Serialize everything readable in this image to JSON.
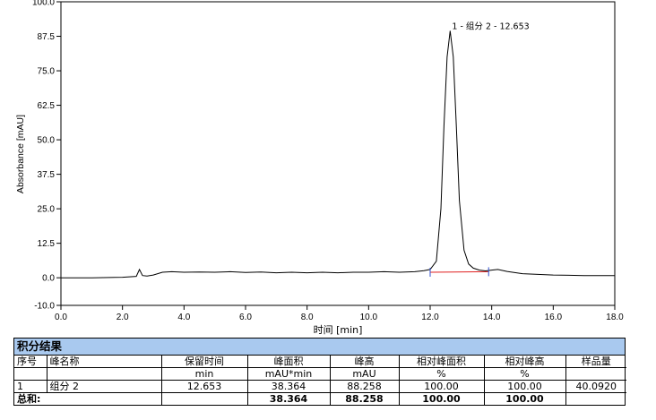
{
  "chart_data": {
    "type": "line",
    "xlabel": "时间 [min]",
    "ylabel": "Absorbance [mAU]",
    "xlim": [
      0.0,
      18.0
    ],
    "ylim": [
      -10.0,
      100.0
    ],
    "x_ticks": [
      "0.0",
      "2.0",
      "4.0",
      "6.0",
      "8.0",
      "10.0",
      "12.0",
      "14.0",
      "16.0",
      "18.0"
    ],
    "y_ticks": [
      "-10.0",
      "0.0",
      "12.5",
      "25.0",
      "37.5",
      "50.0",
      "62.5",
      "75.0",
      "87.5",
      "100.0"
    ],
    "series": [
      {
        "x": [
          0.0,
          1.0,
          2.0,
          2.45,
          2.55,
          2.65,
          2.8,
          3.0,
          3.3,
          3.6,
          4.0,
          4.5,
          5.0,
          5.5,
          6.0,
          6.5,
          7.0,
          7.5,
          8.0,
          8.5,
          9.0,
          9.5,
          10.0,
          10.5,
          11.0,
          11.5,
          11.8,
          12.0,
          12.2,
          12.35,
          12.45,
          12.55,
          12.65,
          12.75,
          12.85,
          12.95,
          13.1,
          13.25,
          13.4,
          13.6,
          13.8,
          14.0,
          14.2,
          14.5,
          15.0,
          16.0,
          17.0,
          18.0
        ],
        "y": [
          0.0,
          0.0,
          0.2,
          0.5,
          3.0,
          0.8,
          0.6,
          1.0,
          2.0,
          2.2,
          2.0,
          2.1,
          2.0,
          2.2,
          1.9,
          2.1,
          1.8,
          2.0,
          1.8,
          2.0,
          1.8,
          2.0,
          2.0,
          2.2,
          2.0,
          2.2,
          2.6,
          3.0,
          6.0,
          25.0,
          55.0,
          80.0,
          89.5,
          80.0,
          55.0,
          28.0,
          10.0,
          5.0,
          3.5,
          2.8,
          2.5,
          2.8,
          3.0,
          2.3,
          1.5,
          1.0,
          0.8,
          0.8
        ]
      }
    ],
    "baseline": {
      "x": [
        12.0,
        13.9
      ],
      "y": [
        2.0,
        2.2
      ]
    },
    "integration_marks": [
      12.0,
      13.9
    ],
    "peak_label": {
      "text": "1 - 组分 2 - 12.653",
      "x": 12.653,
      "y": 89.5
    }
  },
  "results": {
    "title": "积分结果",
    "headers": [
      [
        "序号",
        ""
      ],
      [
        "峰名称",
        ""
      ],
      [
        "保留时间",
        "min"
      ],
      [
        "峰面积",
        "mAU*min"
      ],
      [
        "峰高",
        "mAU"
      ],
      [
        "相对峰面积",
        "%"
      ],
      [
        "相对峰高",
        "%"
      ],
      [
        "样品量",
        ""
      ]
    ],
    "rows": [
      [
        "1",
        "组分 2",
        "12.653",
        "38.364",
        "88.258",
        "100.00",
        "100.00",
        "40.0920"
      ]
    ],
    "total": [
      "总和:",
      "",
      "",
      "38.364",
      "88.258",
      "100.00",
      "100.00",
      ""
    ]
  }
}
